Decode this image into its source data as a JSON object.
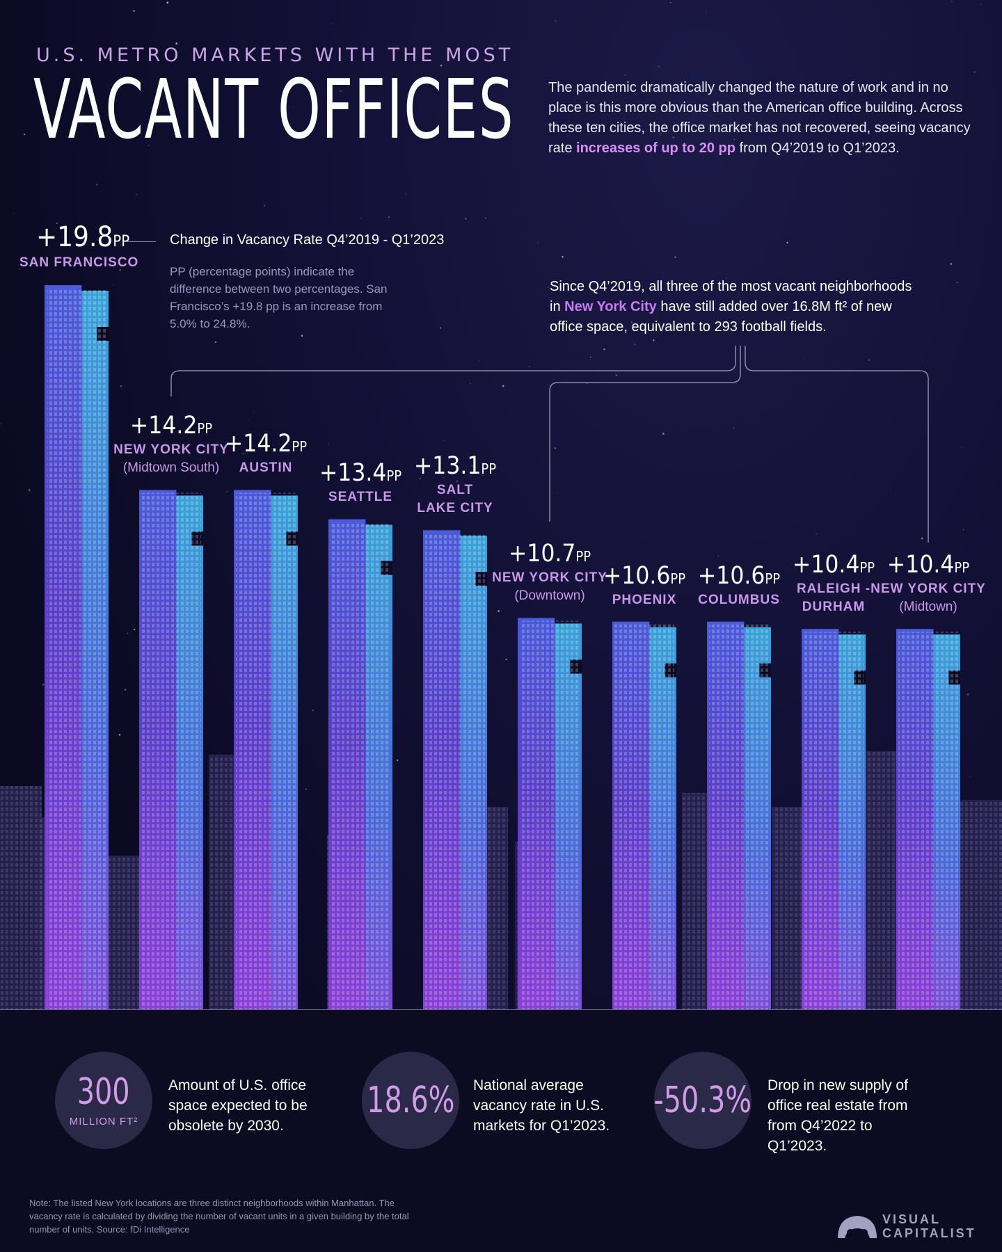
{
  "header": {
    "kicker": "U.S. METRO MARKETS WITH THE MOST",
    "title": "VACANT OFFICES",
    "intro_part1": "The pandemic dramatically changed the nature of work and in no place is this more obvious than the American office building. Across these ten cities, the office market has not recovered, seeing vacancy rate ",
    "intro_highlight": "increases of up to 20 pp",
    "intro_part2": " from Q4’2019 to Q1’2023."
  },
  "legend": {
    "value": "+19.8",
    "unit": "PP",
    "city": "SAN FRANCISCO",
    "label": "Change in Vacancy Rate Q4’2019 - Q1’2023",
    "note": "PP (percentage points) indicate the difference between two percentages. San Francisco’s +19.8 pp is an increase from 5.0% to 24.8%."
  },
  "nyc_note": {
    "part1": "Since Q4’2019, all three of the most vacant neighborhoods in ",
    "highlight": "New York City",
    "part2": " have still added over 16.8M ft² of new office space, equivalent to 293 football fields."
  },
  "chart_data": {
    "type": "bar",
    "title": "VACANT OFFICES",
    "ylabel": "Change in Vacancy Rate Q4’2019 - Q1’2023",
    "unit": "PP",
    "ylim": [
      0,
      20
    ],
    "categories": [
      {
        "city": "SAN FRANCISCO",
        "sub": ""
      },
      {
        "city": "NEW YORK CITY",
        "sub": "(Midtown South)"
      },
      {
        "city": "AUSTIN",
        "sub": ""
      },
      {
        "city": "SEATTLE",
        "sub": ""
      },
      {
        "city": "SALT LAKE CITY",
        "sub": ""
      },
      {
        "city": "NEW YORK CITY",
        "sub": "(Downtown)"
      },
      {
        "city": "PHOENIX",
        "sub": ""
      },
      {
        "city": "COLUMBUS",
        "sub": ""
      },
      {
        "city": "RALEIGH -DURHAM",
        "sub": ""
      },
      {
        "city": "NEW YORK CITY",
        "sub": "(Midtown)"
      }
    ],
    "values": [
      19.8,
      14.2,
      14.2,
      13.4,
      13.1,
      10.7,
      10.6,
      10.6,
      10.4,
      10.4
    ],
    "labels": [
      "+19.8",
      "+14.2",
      "+14.2",
      "+13.4",
      "+13.1",
      "+10.7",
      "+10.6",
      "+10.6",
      "+10.4",
      "+10.4"
    ]
  },
  "stats": [
    {
      "big": "300",
      "small": "MILLION FT²",
      "text": "Amount of U.S. office space expected to be obsolete by 2030."
    },
    {
      "big": "18.6%",
      "small": "",
      "text": "National average vacancy rate in U.S. markets for Q1’2023."
    },
    {
      "big": "-50.3%",
      "small": "",
      "text": "Drop in new supply of office real estate from from Q4’2022 to Q1’2023."
    }
  ],
  "footnote": "Note: The listed New York locations are three distinct neighborhoods within Manhattan. The vacancy rate is calculated by dividing the number of vacant units in a given building by the total number of units. Source: fDi Intelligence",
  "brand": {
    "line1": "VISUAL",
    "line2": "CAPITALIST"
  },
  "colors": {
    "accent": "#c798e8",
    "highlight": "#d58ff3",
    "bar_top": "#3aa2d8",
    "bar_bottom": "#7a3fd1",
    "background": "#0d0b24"
  }
}
